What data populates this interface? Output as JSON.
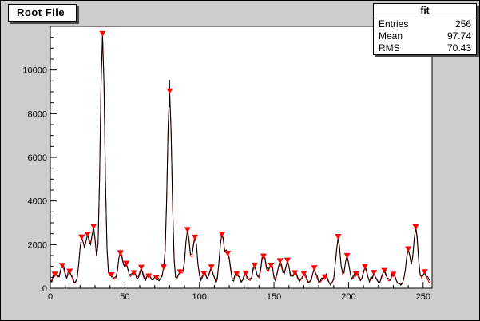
{
  "stats_box": {
    "title": "fit",
    "rows": [
      {
        "label": "Entries",
        "value": "256"
      },
      {
        "label": "Mean",
        "value": "97.74"
      },
      {
        "label": "RMS",
        "value": "70.43"
      }
    ]
  },
  "colors": {
    "canvas_bg": "#cdcdcd",
    "frame_bg": "#ffffff",
    "axis": "#000000",
    "hist_line": "#000000",
    "fit_line": "#dd0000",
    "marker": "#ff0000",
    "pave_shadow": "#4a4a4a"
  },
  "chart_data": {
    "type": "line",
    "title": "Root File",
    "stats": {
      "title": "fit",
      "entries": 256,
      "mean": 97.74,
      "rms": 70.43
    },
    "n_bins": 256,
    "xlim": [
      0,
      256
    ],
    "ylim": [
      0,
      12000
    ],
    "x_ticks": [
      0,
      50,
      100,
      150,
      200,
      250
    ],
    "y_ticks": [
      0,
      2000,
      4000,
      6000,
      8000,
      10000
    ],
    "x_minor_step": 10,
    "y_minor_step": 500,
    "grid": false,
    "legend": null,
    "xlabel": "",
    "ylabel": "",
    "marker": {
      "shape": "triangle-down",
      "color": "#ff0000"
    },
    "baseline": {
      "base": 70,
      "jitter": 260
    },
    "peak_sigma": 1.5,
    "peaks": [
      {
        "x": 3,
        "y": 480
      },
      {
        "x": 8,
        "y": 840
      },
      {
        "x": 13,
        "y": 500
      },
      {
        "x": 21,
        "y": 2050
      },
      {
        "x": 25,
        "y": 2150
      },
      {
        "x": 29,
        "y": 2450
      },
      {
        "x": 35,
        "y": 11350
      },
      {
        "x": 41,
        "y": 430
      },
      {
        "x": 47,
        "y": 1500
      },
      {
        "x": 51,
        "y": 820
      },
      {
        "x": 56,
        "y": 580
      },
      {
        "x": 61,
        "y": 680
      },
      {
        "x": 66,
        "y": 430
      },
      {
        "x": 71,
        "y": 380
      },
      {
        "x": 76,
        "y": 480
      },
      {
        "x": 80,
        "y": 8850
      },
      {
        "x": 87,
        "y": 560
      },
      {
        "x": 92,
        "y": 2420
      },
      {
        "x": 97,
        "y": 2250
      },
      {
        "x": 103,
        "y": 480
      },
      {
        "x": 108,
        "y": 660
      },
      {
        "x": 115,
        "y": 2250
      },
      {
        "x": 119,
        "y": 1400
      },
      {
        "x": 125,
        "y": 520
      },
      {
        "x": 131,
        "y": 430
      },
      {
        "x": 137,
        "y": 780
      },
      {
        "x": 143,
        "y": 1380
      },
      {
        "x": 148,
        "y": 860
      },
      {
        "x": 154,
        "y": 960
      },
      {
        "x": 159,
        "y": 980
      },
      {
        "x": 164,
        "y": 520
      },
      {
        "x": 170,
        "y": 430
      },
      {
        "x": 177,
        "y": 620
      },
      {
        "x": 184,
        "y": 430
      },
      {
        "x": 193,
        "y": 2050
      },
      {
        "x": 199,
        "y": 1280
      },
      {
        "x": 205,
        "y": 520
      },
      {
        "x": 211,
        "y": 720
      },
      {
        "x": 217,
        "y": 430
      },
      {
        "x": 224,
        "y": 620
      },
      {
        "x": 230,
        "y": 430
      },
      {
        "x": 240,
        "y": 1550
      },
      {
        "x": 245,
        "y": 2550
      },
      {
        "x": 251,
        "y": 520
      }
    ],
    "error_bar": {
      "x": 80,
      "y_low": 8300,
      "y_high": 9550
    }
  }
}
